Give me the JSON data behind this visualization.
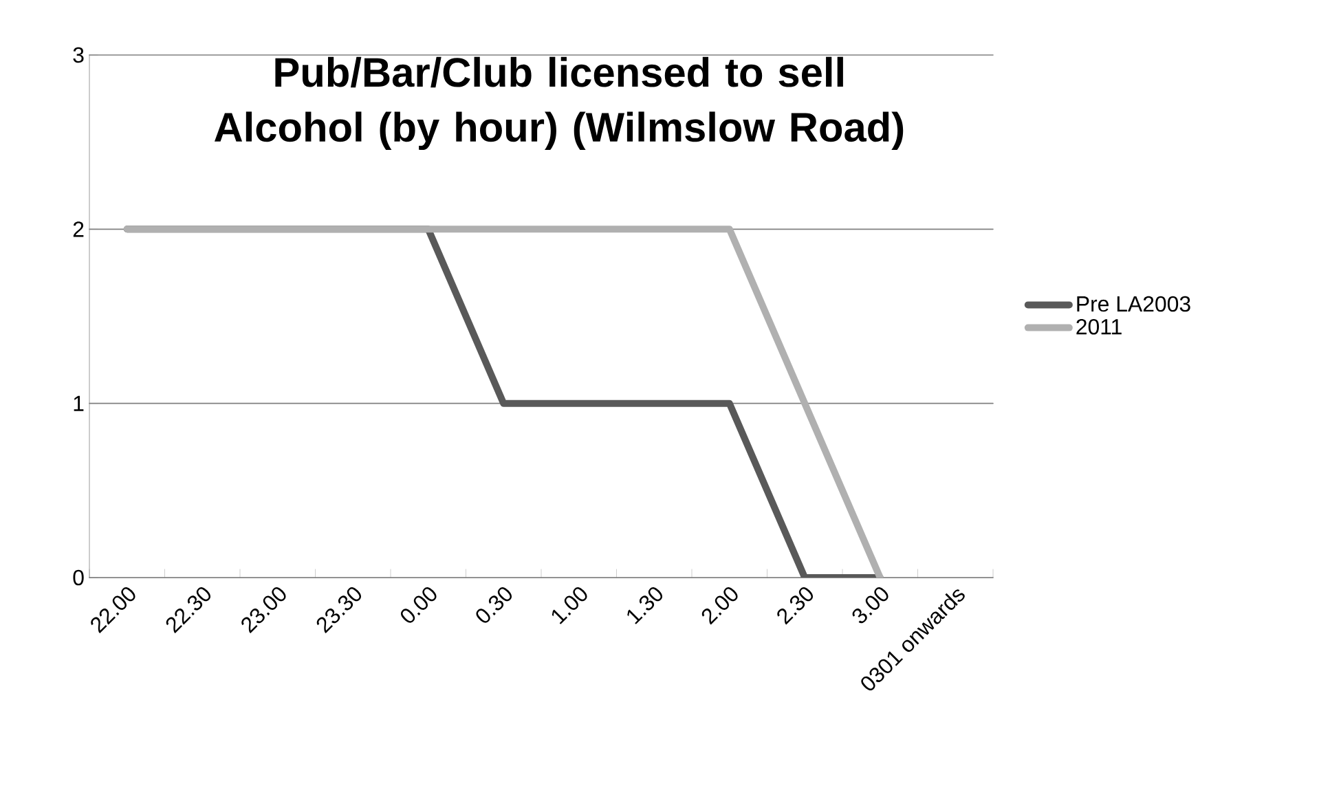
{
  "chart_data": {
    "type": "line",
    "title": "Pub/Bar/Club licensed to sell Alcohol (by hour) (Wilmslow Road)",
    "categories": [
      "22.00",
      "22.30",
      "23.00",
      "23.30",
      "0.00",
      "0.30",
      "1.00",
      "1.30",
      "2.00",
      "2.30",
      "3.00",
      "0301 onwards"
    ],
    "series": [
      {
        "name": "Pre LA2003",
        "color": "#595959",
        "values": [
          2,
          2,
          2,
          2,
          2,
          1,
          1,
          1,
          1,
          0,
          0,
          null
        ]
      },
      {
        "name": "2011",
        "color": "#b0b0b0",
        "values": [
          2,
          2,
          2,
          2,
          2,
          2,
          2,
          2,
          2,
          1,
          0,
          null
        ]
      }
    ],
    "ylim": [
      0,
      3
    ],
    "yticks": [
      0,
      1,
      2,
      3
    ],
    "grid": "y",
    "legend": "right",
    "marker": "none",
    "line_style": "solid"
  }
}
